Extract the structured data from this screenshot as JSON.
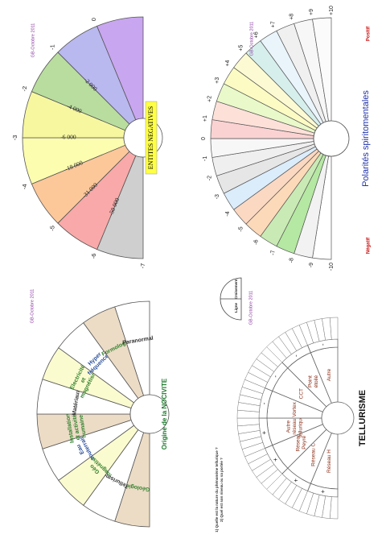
{
  "credit": "GB-Octobre 2011",
  "panel_nocivite": {
    "title": "Origine de la NOCIVITE",
    "sectors": [
      {
        "lines": [
          "Géologie"
        ],
        "color": "#ecdcc6",
        "text_color": "#2f7f2a"
      },
      {
        "lines": [
          "Tellurisme"
        ],
        "color": "#ffffff",
        "text_color": "#333333"
      },
      {
        "lines": [
          "Géo",
          "magnétisme"
        ],
        "color": "#fbfbd0",
        "text_color": "#2f7f2a"
      },
      {
        "lines": [
          "Eau",
          "souterraine"
        ],
        "color": "#ffffff",
        "text_color": "#2a4f9a"
      },
      {
        "lines": [
          "Installations",
          "et activités",
          "humaines"
        ],
        "color": "#ecdcc6",
        "text_color": "#2f7f2a"
      },
      {
        "lines": [
          "Matériaux"
        ],
        "color": "#ffffff",
        "text_color": "#333333"
      },
      {
        "lines": [
          "Electricité",
          "et",
          "magnétisme"
        ],
        "color": "#fbfbd0",
        "text_color": "#2f7f2a"
      },
      {
        "lines": [
          "Hyper",
          "fréquences"
        ],
        "color": "#ffffff",
        "text_color": "#2a4f9a"
      },
      {
        "lines": [
          "Formologie"
        ],
        "color": "#ecdcc6",
        "text_color": "#2f7f2a"
      },
      {
        "lines": [
          "Paranormal"
        ],
        "color": "#ffffff",
        "text_color": "#333333"
      }
    ]
  },
  "panel_entites": {
    "title": "ENTITES NEGATIVES",
    "title_bg": "#ffff44",
    "outer_labels": [
      "-7",
      "-6",
      "-5",
      "-4",
      "-3",
      "-2",
      "-1",
      "0"
    ],
    "values": [
      "-50 000",
      "-31 000",
      "-18 000",
      "-6 000",
      "-4 000",
      "-2 000"
    ],
    "colors": [
      "#cfcfcf",
      "#f9a9a9",
      "#fcc89a",
      "#fdfdb0",
      "#f7f7a0",
      "#b9dd9e",
      "#b9b8ef",
      "#c9a6f0"
    ]
  },
  "panel_tellurisme": {
    "title": "TELLURISME",
    "questions": [
      "1) Quelle est la nature du phénomène tellurique ?",
      "2) Quel est son niveau ou sa portée ?"
    ],
    "sectors": [
      {
        "lines": [
          "Réseau H"
        ]
      },
      {
        "lines": [
          "Réseau C"
        ]
      },
      {
        "lines": [
          "Réseau",
          "Peyré"
        ]
      },
      {
        "lines": [
          "Autre",
          "réseau",
          "tellurique"
        ]
      },
      {
        "lines": [
          "Vortex"
        ]
      },
      {
        "lines": [
          "CCT"
        ]
      },
      {
        "lines": [
          "Point",
          "étoilé"
        ]
      },
      {
        "lines": [
          "Autre"
        ]
      }
    ],
    "signs": [
      "+",
      "+",
      "+",
      "+",
      "-",
      "-",
      "-",
      "-"
    ],
    "inset_labels": [
      "Ligne",
      "Croisement"
    ]
  },
  "panel_polarites": {
    "title": "Polarités spiritomentales",
    "negative_label": "Négatif",
    "positive_label": "Positif",
    "scale": [
      "-10",
      "-9",
      "-8",
      "-7",
      "-6",
      "-5",
      "-4",
      "-3",
      "-2",
      "-1",
      "0",
      "+1",
      "+2",
      "+3",
      "+4",
      "+5",
      "+6",
      "+7",
      "+8",
      "+9",
      "+10"
    ],
    "colors": [
      "#ffffff",
      "#f2f2f2",
      "#b5e8a2",
      "#c9eab4",
      "#fcd9b8",
      "#fbd8c2",
      "#dbecfb",
      "#e6e6e6",
      "#efefef",
      "#f7f7f7",
      "#fbd2d2",
      "#fde1d9",
      "#e9f9c9",
      "#fbfbc3",
      "#fcfad2",
      "#d6efec",
      "#e9f4fb",
      "#f0f0f0",
      "#f7f7f7",
      "#fbfbfb"
    ]
  },
  "colors": {
    "nocivite_title": "#1a7a2a",
    "credit": "#8a3aa0",
    "polarites_title": "#2233aa",
    "tellurisme_sector_text": "#8a2e16",
    "negative_label": "#cc1111",
    "positive_label": "#cc1111"
  }
}
